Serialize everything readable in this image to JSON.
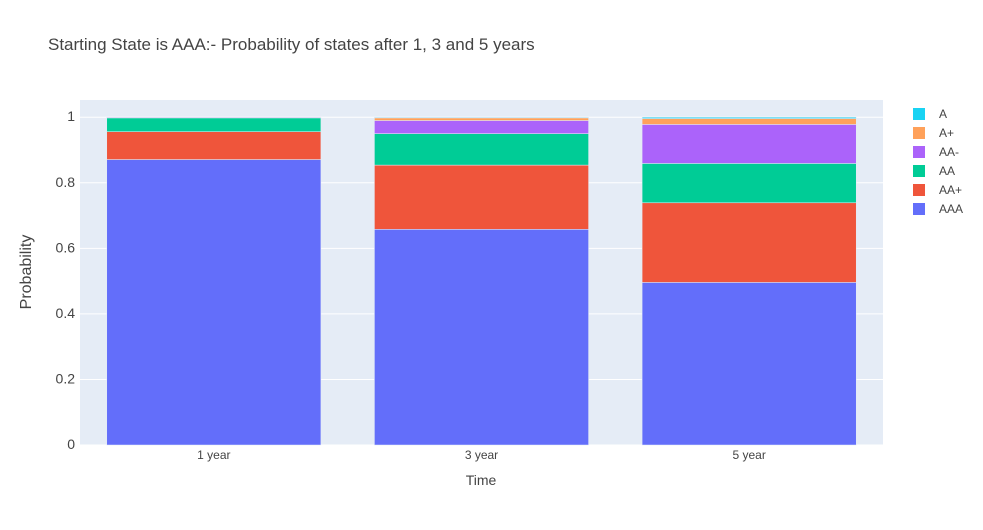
{
  "chart_data": {
    "type": "bar",
    "stacked": true,
    "title": "Starting State is AAA:- Probability of states after 1, 3 and 5 years",
    "xlabel": "Time",
    "ylabel": "Probability",
    "categories": [
      "1 year",
      "3 year",
      "5 year"
    ],
    "ylim": [
      0,
      1.0526
    ],
    "yticks": [
      0,
      0.2,
      0.4,
      0.6,
      0.8,
      1
    ],
    "ytick_labels": [
      "0",
      "0.2",
      "0.4",
      "0.6",
      "0.8",
      "1"
    ],
    "grid": true,
    "legend_position": "top-right",
    "series": [
      {
        "name": "AAA",
        "color": "#636EFA",
        "values": [
          0.871,
          0.658,
          0.496
        ]
      },
      {
        "name": "AA+",
        "color": "#EF553B",
        "values": [
          0.085,
          0.196,
          0.243
        ]
      },
      {
        "name": "AA",
        "color": "#00CC96",
        "values": [
          0.042,
          0.096,
          0.12
        ]
      },
      {
        "name": "AA-",
        "color": "#AB63FA",
        "values": [
          0.002,
          0.04,
          0.119
        ]
      },
      {
        "name": "A+",
        "color": "#FFA15A",
        "values": [
          0.0,
          0.008,
          0.018
        ]
      },
      {
        "name": "A",
        "color": "#19D3F3",
        "values": [
          0.0,
          0.002,
          0.004
        ]
      }
    ]
  }
}
